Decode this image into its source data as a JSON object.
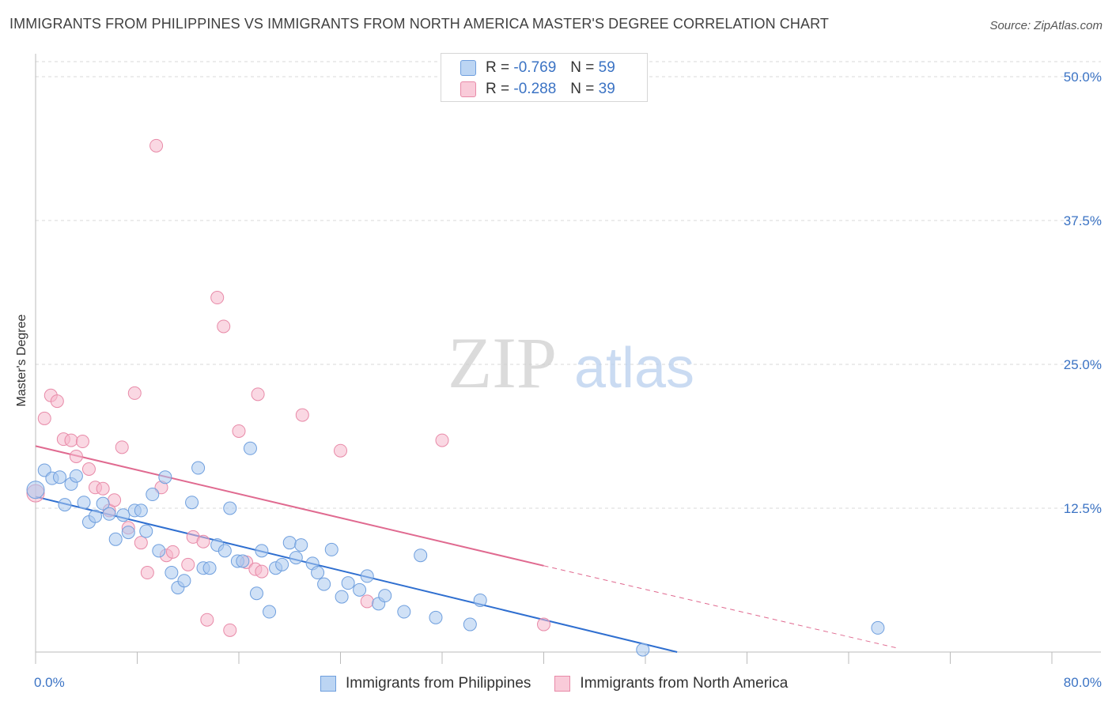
{
  "title": "IMMIGRANTS FROM PHILIPPINES VS IMMIGRANTS FROM NORTH AMERICA MASTER'S DEGREE CORRELATION CHART",
  "source": "Source: ZipAtlas.com",
  "watermark": {
    "zip": "ZIP",
    "atlas": "atlas"
  },
  "colors": {
    "blue_fill": "#a9c8ef",
    "blue_stroke": "#6f9fde",
    "blue_line": "#2f6fd0",
    "pink_fill": "#f6b8cc",
    "pink_stroke": "#e88aa8",
    "pink_line": "#e06a90",
    "tick_text": "#3b73c4",
    "grid": "#d8d8d8"
  },
  "legend_top": [
    {
      "r_label": "R =",
      "r_value": "-0.769",
      "n_label": "N =",
      "n_value": "59",
      "swatch": "blue"
    },
    {
      "r_label": "R =",
      "r_value": "-0.288",
      "n_label": "N =",
      "n_value": "39",
      "swatch": "pink"
    }
  ],
  "legend_bottom": [
    {
      "label": "Immigrants from Philippines",
      "swatch": "blue"
    },
    {
      "label": "Immigrants from North America",
      "swatch": "pink"
    }
  ],
  "chart_data": {
    "type": "scatter",
    "title": "IMMIGRANTS FROM PHILIPPINES VS IMMIGRANTS FROM NORTH AMERICA MASTER'S DEGREE CORRELATION CHART",
    "xlabel": "",
    "ylabel": "Master's Degree",
    "xlim": [
      0,
      80
    ],
    "ylim": [
      0,
      50
    ],
    "x_tick_labels": [
      "0.0%",
      "80.0%"
    ],
    "y_ticks": [
      12.5,
      25.0,
      37.5,
      50.0
    ],
    "y_tick_labels": [
      "12.5%",
      "25.0%",
      "37.5%",
      "50.0%"
    ],
    "grid": true,
    "series": [
      {
        "name": "Immigrants from Philippines",
        "color": "blue",
        "R": -0.769,
        "N": 59,
        "trend": {
          "x0": 0,
          "y0": 13.5,
          "x1": 50.5,
          "y1": 0.0
        },
        "points": [
          [
            0.0,
            14.1
          ],
          [
            0.7,
            15.8
          ],
          [
            1.3,
            15.1
          ],
          [
            1.9,
            15.2
          ],
          [
            2.3,
            12.8
          ],
          [
            2.8,
            14.6
          ],
          [
            3.2,
            15.3
          ],
          [
            3.8,
            13.0
          ],
          [
            4.2,
            11.3
          ],
          [
            4.7,
            11.8
          ],
          [
            5.3,
            12.9
          ],
          [
            5.8,
            12.0
          ],
          [
            6.3,
            9.8
          ],
          [
            6.9,
            11.9
          ],
          [
            7.3,
            10.4
          ],
          [
            7.8,
            12.3
          ],
          [
            8.3,
            12.3
          ],
          [
            8.7,
            10.5
          ],
          [
            9.2,
            13.7
          ],
          [
            9.7,
            8.8
          ],
          [
            10.2,
            15.2
          ],
          [
            10.7,
            6.9
          ],
          [
            11.2,
            5.6
          ],
          [
            11.7,
            6.2
          ],
          [
            12.3,
            13.0
          ],
          [
            12.8,
            16.0
          ],
          [
            13.2,
            7.3
          ],
          [
            13.7,
            7.3
          ],
          [
            14.3,
            9.3
          ],
          [
            14.9,
            8.8
          ],
          [
            15.3,
            12.5
          ],
          [
            15.9,
            7.9
          ],
          [
            16.3,
            7.9
          ],
          [
            16.9,
            17.7
          ],
          [
            17.4,
            5.1
          ],
          [
            17.8,
            8.8
          ],
          [
            18.4,
            3.5
          ],
          [
            18.9,
            7.3
          ],
          [
            19.4,
            7.6
          ],
          [
            20.0,
            9.5
          ],
          [
            20.5,
            8.2
          ],
          [
            20.9,
            9.3
          ],
          [
            21.8,
            7.7
          ],
          [
            22.2,
            6.9
          ],
          [
            22.7,
            5.9
          ],
          [
            23.3,
            8.9
          ],
          [
            24.1,
            4.8
          ],
          [
            24.6,
            6.0
          ],
          [
            25.5,
            5.4
          ],
          [
            26.1,
            6.6
          ],
          [
            27.0,
            4.2
          ],
          [
            27.5,
            4.9
          ],
          [
            29.0,
            3.5
          ],
          [
            30.3,
            8.4
          ],
          [
            31.5,
            3.0
          ],
          [
            34.2,
            2.4
          ],
          [
            35.0,
            4.5
          ],
          [
            47.8,
            0.2
          ],
          [
            66.3,
            2.1
          ]
        ]
      },
      {
        "name": "Immigrants from North America",
        "color": "pink",
        "R": -0.288,
        "N": 39,
        "trend": {
          "x0": 0,
          "y0": 17.9,
          "x1": 40.0,
          "y1": 7.5,
          "dash_x1": 68.0,
          "dash_y1": 0.3
        },
        "points": [
          [
            0.0,
            13.8
          ],
          [
            0.7,
            20.3
          ],
          [
            1.2,
            22.3
          ],
          [
            1.7,
            21.8
          ],
          [
            2.2,
            18.5
          ],
          [
            2.8,
            18.4
          ],
          [
            3.2,
            17.0
          ],
          [
            3.7,
            18.3
          ],
          [
            4.2,
            15.9
          ],
          [
            4.7,
            14.3
          ],
          [
            5.3,
            14.2
          ],
          [
            5.8,
            12.3
          ],
          [
            6.2,
            13.2
          ],
          [
            6.8,
            17.8
          ],
          [
            7.3,
            10.8
          ],
          [
            7.8,
            22.5
          ],
          [
            8.3,
            9.5
          ],
          [
            8.8,
            6.9
          ],
          [
            9.5,
            44.0
          ],
          [
            9.9,
            14.3
          ],
          [
            10.3,
            8.4
          ],
          [
            10.8,
            8.7
          ],
          [
            12.0,
            7.6
          ],
          [
            12.4,
            10.0
          ],
          [
            13.2,
            9.6
          ],
          [
            13.5,
            2.8
          ],
          [
            14.3,
            30.8
          ],
          [
            14.8,
            28.3
          ],
          [
            15.3,
            1.9
          ],
          [
            16.0,
            19.2
          ],
          [
            16.6,
            7.8
          ],
          [
            17.3,
            7.2
          ],
          [
            17.8,
            7.0
          ],
          [
            17.5,
            22.4
          ],
          [
            21.0,
            20.6
          ],
          [
            24.0,
            17.5
          ],
          [
            26.1,
            4.4
          ],
          [
            32.0,
            18.4
          ],
          [
            40.0,
            2.4
          ]
        ]
      }
    ]
  }
}
